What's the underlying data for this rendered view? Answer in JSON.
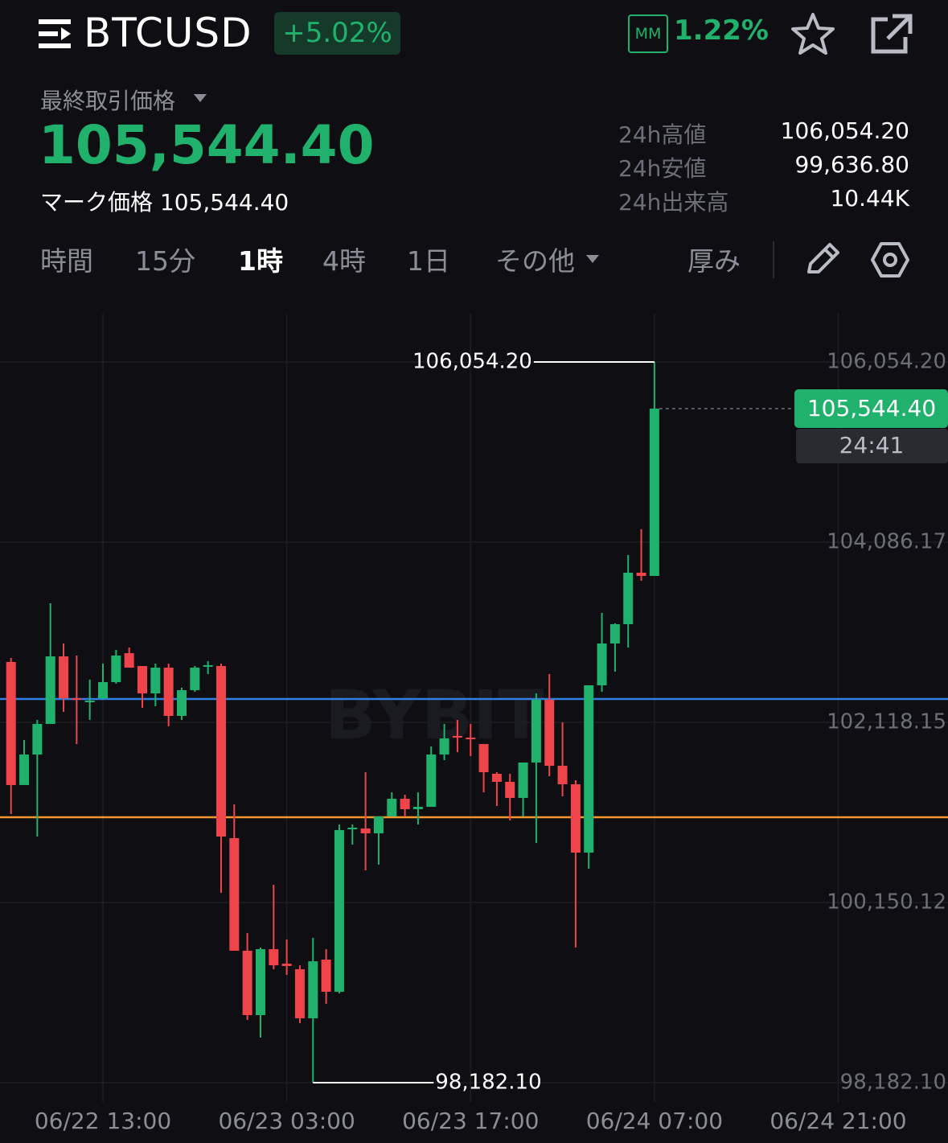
{
  "header": {
    "symbol": "BTCUSD",
    "change": "+5.02%",
    "mm_badge": "MM",
    "mm_value": "1.22%",
    "price_label": "最終取引価格",
    "price": "105,544.40",
    "mark_label": "マーク価格",
    "mark_price": "105,544.40",
    "stats": [
      {
        "label": "24h高値",
        "value": "106,054.20"
      },
      {
        "label": "24h安値",
        "value": "99,636.80"
      },
      {
        "label": "24h出来高",
        "value": "10.44K"
      }
    ],
    "tabs": [
      "時間",
      "15分",
      "1時",
      "4時",
      "1日",
      "その他",
      "厚み"
    ],
    "active_tab": "1時"
  },
  "chart_data": {
    "type": "candlestick",
    "watermark": "BYBIT",
    "categories": [
      null,
      null,
      null,
      null,
      null,
      null,
      null,
      "06/22 13:00",
      null,
      null,
      null,
      null,
      null,
      null,
      null,
      null,
      null,
      null,
      null,
      null,
      null,
      "06/23 03:00",
      null,
      null,
      null,
      null,
      null,
      null,
      null,
      null,
      null,
      null,
      null,
      null,
      null,
      "06/23 17:00",
      null,
      null,
      null,
      null,
      null,
      null,
      null,
      null,
      null,
      null,
      null,
      null,
      null,
      "06/24 07:00",
      null,
      null,
      null,
      null,
      null,
      null,
      null,
      null,
      null,
      null,
      null,
      null,
      null,
      "06/24 21:00"
    ],
    "open": [
      102777,
      101433,
      101766,
      102100,
      102838,
      102381,
      102346,
      102381,
      102557,
      102873,
      102733,
      102434,
      102715,
      102188,
      102469,
      102733,
      102733,
      100853,
      99623,
      98920,
      99640,
      99482,
      99421,
      98885,
      99526,
      99175,
      100949,
      100958,
      100905,
      101090,
      101283,
      101169,
      101195,
      101766,
      101969,
      101951,
      101881,
      101556,
      101468,
      101292,
      101679,
      102364,
      101643,
      101441,
      100695,
      102522,
      102979,
      103190,
      103752,
      103717,
      null,
      null,
      null,
      null,
      null,
      null,
      null,
      null,
      null,
      null,
      null,
      null,
      null,
      null
    ],
    "high": [
      102821,
      101925,
      102144,
      103418,
      102979,
      102847,
      102584,
      102759,
      102909,
      102935,
      102733,
      102759,
      102759,
      102496,
      102733,
      102786,
      102759,
      101222,
      99816,
      99658,
      100343,
      99746,
      99464,
      99763,
      99640,
      101002,
      101002,
      101573,
      101090,
      101353,
      101327,
      101353,
      101854,
      102100,
      102144,
      102100,
      101881,
      101573,
      101556,
      101679,
      102434,
      102645,
      102118,
      101485,
      102522,
      103313,
      103199,
      103945,
      104227,
      106054.2,
      null,
      null,
      null,
      null,
      null,
      null,
      null,
      null,
      null,
      null,
      null,
      null,
      null,
      null
    ],
    "low": [
      101116,
      101433,
      100870,
      102100,
      102232,
      101881,
      102144,
      102364,
      102540,
      102715,
      102276,
      102294,
      102074,
      102144,
      102452,
      102645,
      100255,
      99623,
      98867,
      98674,
      99421,
      99359,
      98832,
      98182.1,
      99043,
      99157,
      100782,
      100501,
      100563,
      101090,
      101090,
      101002,
      101195,
      101705,
      101793,
      101749,
      101353,
      101204,
      101046,
      101090,
      100800,
      101529,
      101310,
      99658,
      100519,
      102452,
      102671,
      102935,
      103664,
      103717,
      null,
      null,
      null,
      null,
      null,
      null,
      null,
      null,
      null,
      null,
      null,
      null,
      null,
      null
    ],
    "close": [
      101433,
      101766,
      102100,
      102838,
      102381,
      102364,
      102355,
      102557,
      102847,
      102715,
      102434,
      102715,
      102188,
      102469,
      102715,
      102742,
      100870,
      99623,
      98920,
      99640,
      99464,
      99456,
      98885,
      99508,
      99175,
      100941,
      100967,
      100905,
      101090,
      101283,
      101169,
      101195,
      101766,
      101942,
      101951,
      101933,
      101573,
      101468,
      101292,
      101679,
      102364,
      101643,
      101441,
      100695,
      102522,
      102979,
      103190,
      103752,
      103717,
      105544.4,
      null,
      null,
      null,
      null,
      null,
      null,
      null,
      null,
      null,
      null,
      null,
      null,
      null,
      null
    ],
    "up_color": "#20b26c",
    "down_color": "#ef454a",
    "ylim": [
      97971,
      106581
    ],
    "yticks": [
      {
        "value": 106054.2,
        "label": "106,054.20"
      },
      {
        "value": 104086.17,
        "label": "104,086.17"
      },
      {
        "value": 102118.15,
        "label": "102,118.15"
      },
      {
        "value": 100150.12,
        "label": "100,150.12"
      },
      {
        "value": 98182.1,
        "label": "98,182.10"
      }
    ],
    "grid": true,
    "hlines": [
      {
        "value": 102373,
        "color": "#2f80e0"
      },
      {
        "value": 101081,
        "color": "#f0962a"
      }
    ],
    "high_annotation": {
      "value": 106054.2,
      "label": "106,054.20"
    },
    "low_annotation": {
      "value": 98182.1,
      "label": "98,182.10"
    },
    "last_price": {
      "value": 105544.4,
      "label": "105,544.40"
    },
    "countdown": "24:41"
  }
}
